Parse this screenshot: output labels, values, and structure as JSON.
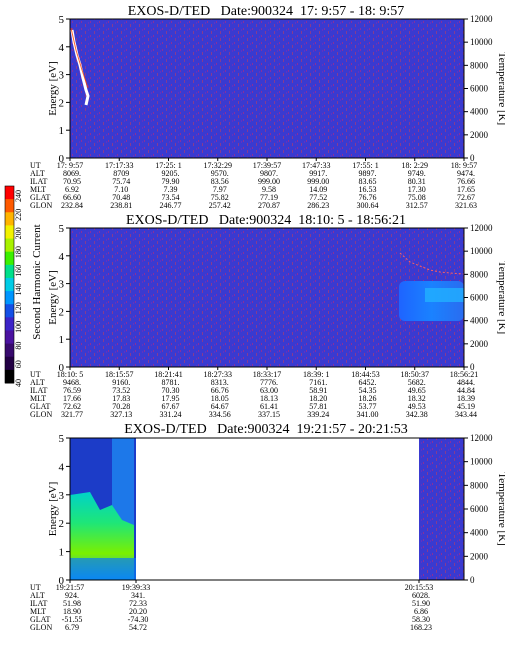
{
  "colorbar": {
    "label": "Second Harmonic Current",
    "ticks": [
      "240",
      "220",
      "200",
      "180",
      "160",
      "140",
      "120",
      "100",
      "80",
      "60",
      "40"
    ],
    "colors": [
      "#ff0000",
      "#ff5a00",
      "#ffb400",
      "#f2f200",
      "#a8f200",
      "#3cf000",
      "#00e08a",
      "#00cce6",
      "#0096ff",
      "#1450e6",
      "#3c24c8",
      "#4a12a0",
      "#380a6e",
      "#220044",
      "#000000"
    ]
  },
  "row_labels": [
    "UT",
    "ALT",
    "ILAT",
    "MLT",
    "GLAT",
    "GLON"
  ],
  "chart_data": [
    {
      "type": "heatmap",
      "title": "EXOS-D/TED   Date:900324  17: 9:57 - 18: 9:57",
      "ylabel": "Energy [eV]",
      "y2label": "Temperature [K]",
      "ylim": [
        0,
        5
      ],
      "y2lim": [
        0,
        12000
      ],
      "yticks": [
        "0",
        "1",
        "2",
        "3",
        "4",
        "5"
      ],
      "y2ticks": [
        "0",
        "2000",
        "4000",
        "6000",
        "8000",
        "10000",
        "12000"
      ],
      "background_color": "#3a3ad0",
      "ephemeris": [
        {
          "UT": "17: 9:57",
          "ALT": "8069.",
          "ILAT": "70.95",
          "MLT": "6.92",
          "GLAT": "66.60",
          "GLON": "232.84"
        },
        {
          "UT": "17:17:33",
          "ALT": "8709",
          "ILAT": "75.74",
          "MLT": "7.10",
          "GLAT": "70.48",
          "GLON": "238.81"
        },
        {
          "UT": "17:25: 1",
          "ALT": "9205.",
          "ILAT": "79.90",
          "MLT": "7.39",
          "GLAT": "73.54",
          "GLON": "246.77"
        },
        {
          "UT": "17:32:29",
          "ALT": "9570.",
          "ILAT": "83.56",
          "MLT": "7.97",
          "GLAT": "75.82",
          "GLON": "257.42"
        },
        {
          "UT": "17:39:57",
          "ALT": "9807.",
          "ILAT": "999.00",
          "MLT": "9.58",
          "GLAT": "77.19",
          "GLON": "270.87"
        },
        {
          "UT": "17:47:33",
          "ALT": "9917.",
          "ILAT": "999.00",
          "MLT": "14.09",
          "GLAT": "77.52",
          "GLON": "286.23"
        },
        {
          "UT": "17:55: 1",
          "ALT": "9897.",
          "ILAT": "83.65",
          "MLT": "16.53",
          "GLAT": "76.76",
          "GLON": "300.64"
        },
        {
          "UT": "18: 2:29",
          "ALT": "9749.",
          "ILAT": "80.31",
          "MLT": "17.30",
          "GLAT": "75.08",
          "GLON": "312.57"
        },
        {
          "UT": "18: 9:57",
          "ALT": "9474.",
          "ILAT": "76.66",
          "MLT": "17.65",
          "GLAT": "72.67",
          "GLON": "321.63"
        }
      ]
    },
    {
      "type": "heatmap",
      "title": "EXOS-D/TED   Date:900324  18:10: 5 - 18:56:21",
      "ylabel": "Energy [eV]",
      "y2label": "Temperature [K]",
      "ylim": [
        0,
        5
      ],
      "y2lim": [
        0,
        12000
      ],
      "yticks": [
        "0",
        "1",
        "2",
        "3",
        "4",
        "5"
      ],
      "y2ticks": [
        "0",
        "2000",
        "4000",
        "6000",
        "8000",
        "10000",
        "12000"
      ],
      "background_color": "#3a3ad0",
      "ephemeris": [
        {
          "UT": "18:10: 5",
          "ALT": "9468.",
          "ILAT": "76.59",
          "MLT": "17.66",
          "GLAT": "72.62",
          "GLON": "321.77"
        },
        {
          "UT": "18:15:57",
          "ALT": "9160.",
          "ILAT": "73.52",
          "MLT": "17.83",
          "GLAT": "70.28",
          "GLON": "327.13"
        },
        {
          "UT": "18:21:41",
          "ALT": "8781.",
          "ILAT": "70.30",
          "MLT": "17.95",
          "GLAT": "67.67",
          "GLON": "331.24"
        },
        {
          "UT": "18:27:33",
          "ALT": "8313.",
          "ILAT": "66.76",
          "MLT": "18.05",
          "GLAT": "64.67",
          "GLON": "334.56"
        },
        {
          "UT": "18:33:17",
          "ALT": "7776.",
          "ILAT": "63.00",
          "MLT": "18.13",
          "GLAT": "61.41",
          "GLON": "337.15"
        },
        {
          "UT": "18:39: 1",
          "ALT": "7161.",
          "ILAT": "58.91",
          "MLT": "18.20",
          "GLAT": "57.81",
          "GLON": "339.24"
        },
        {
          "UT": "18:44:53",
          "ALT": "6452.",
          "ILAT": "54.35",
          "MLT": "18.26",
          "GLAT": "53.77",
          "GLON": "341.00"
        },
        {
          "UT": "18:50:37",
          "ALT": "5682.",
          "ILAT": "49.65",
          "MLT": "18.32",
          "GLAT": "49.53",
          "GLON": "342.38"
        },
        {
          "UT": "18:56:21",
          "ALT": "4844.",
          "ILAT": "44.84",
          "MLT": "18.39",
          "GLAT": "45.19",
          "GLON": "343.44"
        }
      ]
    },
    {
      "type": "heatmap",
      "title": "EXOS-D/TED   Date:900324  19:21:57 - 20:21:53",
      "ylabel": "Energy [eV]",
      "y2label": "Temperature [K]",
      "ylim": [
        0,
        5
      ],
      "y2lim": [
        0,
        12000
      ],
      "yticks": [
        "0",
        "1",
        "2",
        "3",
        "4",
        "5"
      ],
      "y2ticks": [
        "0",
        "2000",
        "4000",
        "6000",
        "8000",
        "10000",
        "12000"
      ],
      "background_color": "#3a3ad0",
      "data_segments": [
        {
          "from": "19:21:57",
          "to": "19:39:33"
        },
        {
          "from": "20:15:53",
          "to": "20:21:53"
        }
      ],
      "ephemeris": [
        {
          "UT": "19:21:57",
          "ALT": "924.",
          "ILAT": "51.98",
          "MLT": "18.90",
          "GLAT": "-51.55",
          "GLON": "6.79"
        },
        {
          "UT": "19:39:33",
          "ALT": "341.",
          "ILAT": "72.33",
          "MLT": "20.20",
          "GLAT": "-74.30",
          "GLON": "54.72"
        },
        {
          "UT": "20:15:53",
          "ALT": "6028.",
          "ILAT": "51.90",
          "MLT": "6.86",
          "GLAT": "58.30",
          "GLON": "168.23"
        }
      ]
    }
  ]
}
